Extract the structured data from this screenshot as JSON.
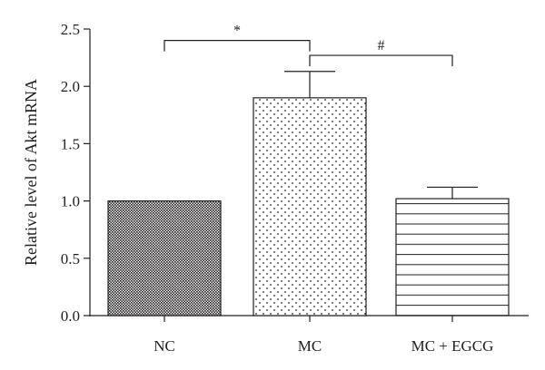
{
  "chart_data": {
    "type": "bar",
    "title": "",
    "xlabel": "",
    "ylabel": "Relative level of Akt mRNA",
    "ylim": [
      0,
      2.5
    ],
    "yticks": [
      "0.0",
      "0.5",
      "1.0",
      "1.5",
      "2.0",
      "2.5"
    ],
    "grid": false,
    "categories": [
      "NC",
      "MC",
      "MC + EGCG"
    ],
    "values": [
      1.0,
      1.9,
      1.02
    ],
    "errors": [
      0,
      0.23,
      0.1
    ],
    "patterns": [
      "crosshatch-dense",
      "dots",
      "horizontal-lines"
    ],
    "significance": [
      {
        "from": 0,
        "to": 1,
        "label": "*",
        "y": 2.4
      },
      {
        "from": 1,
        "to": 2,
        "label": "#",
        "y": 2.27
      }
    ]
  }
}
